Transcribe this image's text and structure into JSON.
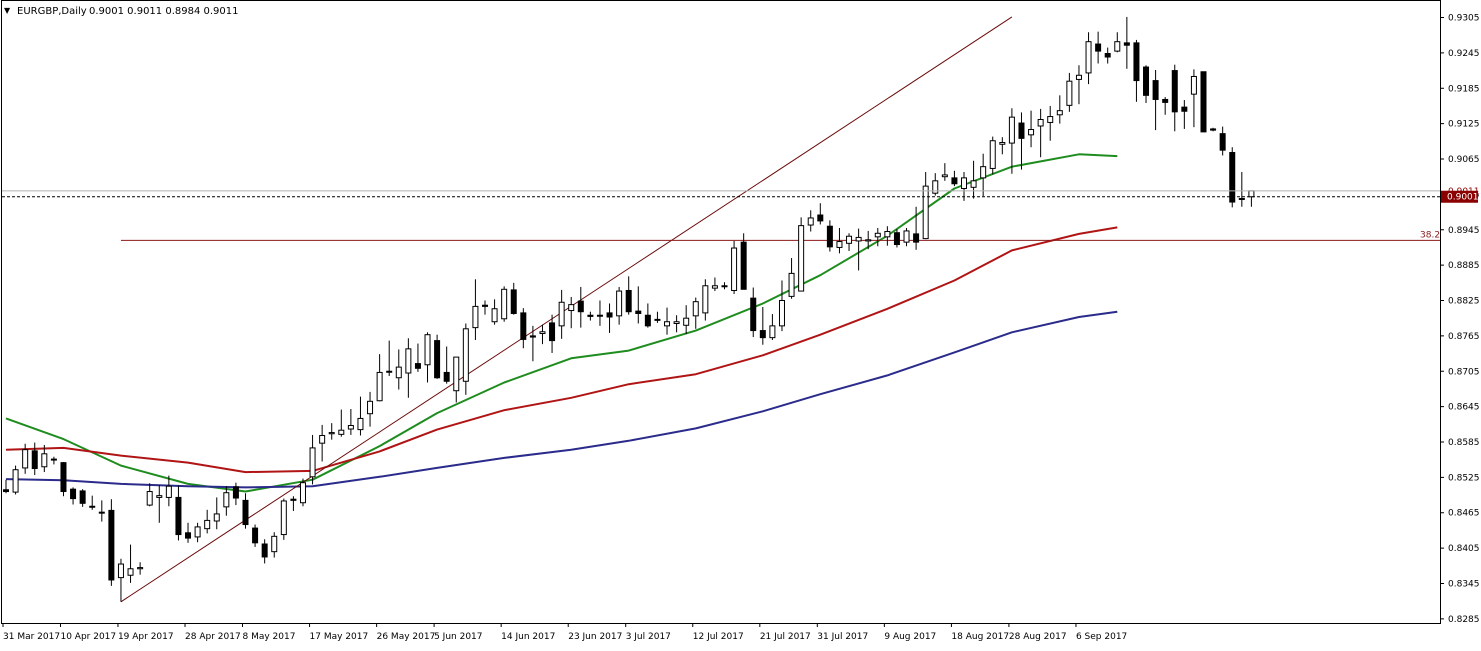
{
  "header": {
    "arrow": "▼",
    "symbol_period": "EURGBP,Daily",
    "ohlc": "0.9001 0.9011 0.8984 0.9011"
  },
  "colors": {
    "bull_body": "#ffffff",
    "bear_body": "#000000",
    "ma_fast": "#1e8c1e",
    "ma_mid": "#b01414",
    "ma_slow": "#2b2b8c",
    "trendline": "#6b0a0a",
    "fib_line": "#8b1a1a",
    "price_label_bg": "#8b0000",
    "grid_dotted": "#000000"
  },
  "price_label": "0.9001",
  "price_label_ghost": "0.9011",
  "fib_label": "38.2",
  "chart_data": {
    "type": "candlestick",
    "symbol": "EURGBP",
    "timeframe": "Daily",
    "y_axis": {
      "ticks": [
        "0.9305",
        "0.9245",
        "0.9185",
        "0.9125",
        "0.9065",
        "0.9005",
        "0.8945",
        "0.8885",
        "0.8825",
        "0.8765",
        "0.8705",
        "0.8645",
        "0.8585",
        "0.8525",
        "0.8465",
        "0.8405",
        "0.8345",
        "0.8285"
      ],
      "ylim": [
        0.8278,
        0.9333
      ]
    },
    "x_axis": {
      "ticks": [
        {
          "label": "31 Mar 2017",
          "index": 0
        },
        {
          "label": "10 Apr 2017",
          "index": 6
        },
        {
          "label": "19 Apr 2017",
          "index": 12
        },
        {
          "label": "28 Apr 2017",
          "index": 19
        },
        {
          "label": "8 May 2017",
          "index": 25
        },
        {
          "label": "17 May 2017",
          "index": 32
        },
        {
          "label": "26 May 2017",
          "index": 39
        },
        {
          "label": "5 Jun 2017",
          "index": 45
        },
        {
          "label": "14 Jun 2017",
          "index": 52
        },
        {
          "label": "23 Jun 2017",
          "index": 59
        },
        {
          "label": "3 Jul 2017",
          "index": 65
        },
        {
          "label": "12 Jul 2017",
          "index": 72
        },
        {
          "label": "21 Jul 2017",
          "index": 79
        },
        {
          "label": "31 Jul 2017",
          "index": 85
        },
        {
          "label": "9 Aug 2017",
          "index": 92
        },
        {
          "label": "18 Aug 2017",
          "index": 99
        },
        {
          "label": "28 Aug 2017",
          "index": 105
        },
        {
          "label": "6 Sep 2017",
          "index": 112
        }
      ]
    },
    "candles": [
      {
        "o": 0.8504,
        "h": 0.8521,
        "l": 0.8498,
        "c": 0.8501
      },
      {
        "o": 0.85,
        "h": 0.8545,
        "l": 0.8496,
        "c": 0.8538
      },
      {
        "o": 0.8541,
        "h": 0.8582,
        "l": 0.8531,
        "c": 0.8572
      },
      {
        "o": 0.857,
        "h": 0.8584,
        "l": 0.8529,
        "c": 0.854
      },
      {
        "o": 0.8543,
        "h": 0.858,
        "l": 0.8534,
        "c": 0.8565
      },
      {
        "o": 0.8556,
        "h": 0.856,
        "l": 0.8547,
        "c": 0.8555
      },
      {
        "o": 0.855,
        "h": 0.8551,
        "l": 0.8493,
        "c": 0.8501
      },
      {
        "o": 0.8505,
        "h": 0.8508,
        "l": 0.8479,
        "c": 0.8489
      },
      {
        "o": 0.8502,
        "h": 0.8505,
        "l": 0.8475,
        "c": 0.8481
      },
      {
        "o": 0.8476,
        "h": 0.8494,
        "l": 0.847,
        "c": 0.8476
      },
      {
        "o": 0.8465,
        "h": 0.8486,
        "l": 0.845,
        "c": 0.8466
      },
      {
        "o": 0.8469,
        "h": 0.8488,
        "l": 0.8341,
        "c": 0.8351
      },
      {
        "o": 0.8355,
        "h": 0.8387,
        "l": 0.8314,
        "c": 0.8378
      },
      {
        "o": 0.8359,
        "h": 0.8411,
        "l": 0.8346,
        "c": 0.837
      },
      {
        "o": 0.837,
        "h": 0.8381,
        "l": 0.836,
        "c": 0.8372
      },
      {
        "o": 0.8478,
        "h": 0.8515,
        "l": 0.8476,
        "c": 0.8501
      },
      {
        "o": 0.8491,
        "h": 0.8512,
        "l": 0.8448,
        "c": 0.8494
      },
      {
        "o": 0.8491,
        "h": 0.8528,
        "l": 0.8476,
        "c": 0.851
      },
      {
        "o": 0.8491,
        "h": 0.8511,
        "l": 0.8418,
        "c": 0.8428
      },
      {
        "o": 0.8431,
        "h": 0.8448,
        "l": 0.8414,
        "c": 0.8422
      },
      {
        "o": 0.8424,
        "h": 0.8448,
        "l": 0.8415,
        "c": 0.8441
      },
      {
        "o": 0.8438,
        "h": 0.847,
        "l": 0.843,
        "c": 0.8452
      },
      {
        "o": 0.8451,
        "h": 0.8491,
        "l": 0.8437,
        "c": 0.8463
      },
      {
        "o": 0.8475,
        "h": 0.851,
        "l": 0.846,
        "c": 0.8499
      },
      {
        "o": 0.8509,
        "h": 0.8516,
        "l": 0.8478,
        "c": 0.849
      },
      {
        "o": 0.8486,
        "h": 0.8498,
        "l": 0.8438,
        "c": 0.8445
      },
      {
        "o": 0.8439,
        "h": 0.8445,
        "l": 0.8407,
        "c": 0.8414
      },
      {
        "o": 0.8412,
        "h": 0.842,
        "l": 0.8379,
        "c": 0.839
      },
      {
        "o": 0.8399,
        "h": 0.8432,
        "l": 0.8389,
        "c": 0.8425
      },
      {
        "o": 0.8428,
        "h": 0.8489,
        "l": 0.8419,
        "c": 0.8485
      },
      {
        "o": 0.8488,
        "h": 0.8493,
        "l": 0.8468,
        "c": 0.8486
      },
      {
        "o": 0.8482,
        "h": 0.8523,
        "l": 0.8476,
        "c": 0.8516
      },
      {
        "o": 0.8526,
        "h": 0.8597,
        "l": 0.8513,
        "c": 0.8575
      },
      {
        "o": 0.8583,
        "h": 0.8614,
        "l": 0.8552,
        "c": 0.8596
      },
      {
        "o": 0.8599,
        "h": 0.8617,
        "l": 0.8589,
        "c": 0.8601
      },
      {
        "o": 0.8598,
        "h": 0.864,
        "l": 0.8594,
        "c": 0.8605
      },
      {
        "o": 0.8607,
        "h": 0.8641,
        "l": 0.8597,
        "c": 0.8613
      },
      {
        "o": 0.8606,
        "h": 0.8662,
        "l": 0.8596,
        "c": 0.8625
      },
      {
        "o": 0.8633,
        "h": 0.867,
        "l": 0.8611,
        "c": 0.8654
      },
      {
        "o": 0.8655,
        "h": 0.8734,
        "l": 0.8654,
        "c": 0.8703
      },
      {
        "o": 0.8704,
        "h": 0.8757,
        "l": 0.8697,
        "c": 0.8705
      },
      {
        "o": 0.8694,
        "h": 0.8742,
        "l": 0.8674,
        "c": 0.8712
      },
      {
        "o": 0.8702,
        "h": 0.8761,
        "l": 0.866,
        "c": 0.8743
      },
      {
        "o": 0.8718,
        "h": 0.8752,
        "l": 0.8704,
        "c": 0.871
      },
      {
        "o": 0.8716,
        "h": 0.8771,
        "l": 0.8686,
        "c": 0.8767
      },
      {
        "o": 0.8757,
        "h": 0.8767,
        "l": 0.8692,
        "c": 0.8694
      },
      {
        "o": 0.8703,
        "h": 0.8747,
        "l": 0.8684,
        "c": 0.8688
      },
      {
        "o": 0.8672,
        "h": 0.8729,
        "l": 0.8652,
        "c": 0.8729
      },
      {
        "o": 0.8688,
        "h": 0.8786,
        "l": 0.8665,
        "c": 0.8777
      },
      {
        "o": 0.8779,
        "h": 0.8861,
        "l": 0.8758,
        "c": 0.8815
      },
      {
        "o": 0.8817,
        "h": 0.8825,
        "l": 0.8801,
        "c": 0.8815
      },
      {
        "o": 0.8789,
        "h": 0.8827,
        "l": 0.8784,
        "c": 0.8811
      },
      {
        "o": 0.8794,
        "h": 0.8849,
        "l": 0.8789,
        "c": 0.8844
      },
      {
        "o": 0.8843,
        "h": 0.8855,
        "l": 0.8801,
        "c": 0.8803
      },
      {
        "o": 0.8804,
        "h": 0.8812,
        "l": 0.8744,
        "c": 0.8759
      },
      {
        "o": 0.8765,
        "h": 0.8782,
        "l": 0.8722,
        "c": 0.8763
      },
      {
        "o": 0.8769,
        "h": 0.8784,
        "l": 0.8751,
        "c": 0.8772
      },
      {
        "o": 0.8787,
        "h": 0.8801,
        "l": 0.8736,
        "c": 0.8757
      },
      {
        "o": 0.8782,
        "h": 0.8843,
        "l": 0.876,
        "c": 0.8822
      },
      {
        "o": 0.8808,
        "h": 0.8831,
        "l": 0.8778,
        "c": 0.8818
      },
      {
        "o": 0.8824,
        "h": 0.8848,
        "l": 0.8779,
        "c": 0.8806
      },
      {
        "o": 0.88,
        "h": 0.8806,
        "l": 0.8791,
        "c": 0.8798
      },
      {
        "o": 0.88,
        "h": 0.8825,
        "l": 0.8782,
        "c": 0.88
      },
      {
        "o": 0.8804,
        "h": 0.882,
        "l": 0.877,
        "c": 0.8797
      },
      {
        "o": 0.8799,
        "h": 0.8848,
        "l": 0.8784,
        "c": 0.8841
      },
      {
        "o": 0.8842,
        "h": 0.8866,
        "l": 0.8801,
        "c": 0.8806
      },
      {
        "o": 0.8807,
        "h": 0.8849,
        "l": 0.8786,
        "c": 0.8803
      },
      {
        "o": 0.88,
        "h": 0.882,
        "l": 0.8779,
        "c": 0.8782
      },
      {
        "o": 0.8792,
        "h": 0.8806,
        "l": 0.8787,
        "c": 0.8793
      },
      {
        "o": 0.8782,
        "h": 0.8813,
        "l": 0.8767,
        "c": 0.8789
      },
      {
        "o": 0.8786,
        "h": 0.88,
        "l": 0.8771,
        "c": 0.8789
      },
      {
        "o": 0.8783,
        "h": 0.8817,
        "l": 0.8768,
        "c": 0.8795
      },
      {
        "o": 0.8799,
        "h": 0.883,
        "l": 0.8777,
        "c": 0.8823
      },
      {
        "o": 0.8804,
        "h": 0.8861,
        "l": 0.8791,
        "c": 0.885
      },
      {
        "o": 0.8846,
        "h": 0.8864,
        "l": 0.8841,
        "c": 0.885
      },
      {
        "o": 0.8849,
        "h": 0.8856,
        "l": 0.8844,
        "c": 0.885
      },
      {
        "o": 0.8842,
        "h": 0.8926,
        "l": 0.8836,
        "c": 0.8914
      },
      {
        "o": 0.8924,
        "h": 0.8939,
        "l": 0.8854,
        "c": 0.8844
      },
      {
        "o": 0.8829,
        "h": 0.8847,
        "l": 0.8763,
        "c": 0.8774
      },
      {
        "o": 0.8774,
        "h": 0.8814,
        "l": 0.875,
        "c": 0.8762
      },
      {
        "o": 0.8762,
        "h": 0.8802,
        "l": 0.8758,
        "c": 0.8782
      },
      {
        "o": 0.8782,
        "h": 0.8859,
        "l": 0.8773,
        "c": 0.8825
      },
      {
        "o": 0.8832,
        "h": 0.8897,
        "l": 0.8828,
        "c": 0.8871
      },
      {
        "o": 0.8841,
        "h": 0.8966,
        "l": 0.8841,
        "c": 0.8952
      },
      {
        "o": 0.8953,
        "h": 0.8978,
        "l": 0.8942,
        "c": 0.8965
      },
      {
        "o": 0.897,
        "h": 0.899,
        "l": 0.8954,
        "c": 0.896
      },
      {
        "o": 0.8951,
        "h": 0.8961,
        "l": 0.8908,
        "c": 0.8916
      },
      {
        "o": 0.8915,
        "h": 0.8948,
        "l": 0.8905,
        "c": 0.8925
      },
      {
        "o": 0.8922,
        "h": 0.8939,
        "l": 0.8909,
        "c": 0.8934
      },
      {
        "o": 0.8926,
        "h": 0.8947,
        "l": 0.8876,
        "c": 0.8932
      },
      {
        "o": 0.8926,
        "h": 0.8943,
        "l": 0.8912,
        "c": 0.8928
      },
      {
        "o": 0.8933,
        "h": 0.8948,
        "l": 0.8917,
        "c": 0.8939
      },
      {
        "o": 0.8933,
        "h": 0.8951,
        "l": 0.8918,
        "c": 0.8942
      },
      {
        "o": 0.894,
        "h": 0.8946,
        "l": 0.8915,
        "c": 0.892
      },
      {
        "o": 0.8924,
        "h": 0.8948,
        "l": 0.8917,
        "c": 0.8943
      },
      {
        "o": 0.8938,
        "h": 0.8984,
        "l": 0.8911,
        "c": 0.8924
      },
      {
        "o": 0.893,
        "h": 0.9043,
        "l": 0.8929,
        "c": 0.9019
      },
      {
        "o": 0.9007,
        "h": 0.9041,
        "l": 0.9003,
        "c": 0.9028
      },
      {
        "o": 0.9035,
        "h": 0.9058,
        "l": 0.9028,
        "c": 0.9038
      },
      {
        "o": 0.9033,
        "h": 0.9045,
        "l": 0.9019,
        "c": 0.9023
      },
      {
        "o": 0.9015,
        "h": 0.9043,
        "l": 0.8994,
        "c": 0.9033
      },
      {
        "o": 0.9017,
        "h": 0.9062,
        "l": 0.8998,
        "c": 0.9028
      },
      {
        "o": 0.9033,
        "h": 0.9074,
        "l": 0.9002,
        "c": 0.9052
      },
      {
        "o": 0.9049,
        "h": 0.9103,
        "l": 0.9039,
        "c": 0.9096
      },
      {
        "o": 0.909,
        "h": 0.9102,
        "l": 0.9073,
        "c": 0.9093
      },
      {
        "o": 0.9092,
        "h": 0.9151,
        "l": 0.904,
        "c": 0.9136
      },
      {
        "o": 0.9126,
        "h": 0.9144,
        "l": 0.9047,
        "c": 0.91
      },
      {
        "o": 0.9106,
        "h": 0.9147,
        "l": 0.9085,
        "c": 0.9115
      },
      {
        "o": 0.9121,
        "h": 0.915,
        "l": 0.9068,
        "c": 0.9132
      },
      {
        "o": 0.9127,
        "h": 0.9155,
        "l": 0.9096,
        "c": 0.9137
      },
      {
        "o": 0.914,
        "h": 0.9173,
        "l": 0.9125,
        "c": 0.9147
      },
      {
        "o": 0.9156,
        "h": 0.9211,
        "l": 0.9145,
        "c": 0.9197
      },
      {
        "o": 0.92,
        "h": 0.9224,
        "l": 0.9158,
        "c": 0.9207
      },
      {
        "o": 0.9211,
        "h": 0.928,
        "l": 0.9192,
        "c": 0.9264
      },
      {
        "o": 0.926,
        "h": 0.9281,
        "l": 0.9227,
        "c": 0.9248
      },
      {
        "o": 0.9244,
        "h": 0.9254,
        "l": 0.9227,
        "c": 0.9238
      },
      {
        "o": 0.9248,
        "h": 0.928,
        "l": 0.9246,
        "c": 0.9264
      },
      {
        "o": 0.9262,
        "h": 0.9306,
        "l": 0.9218,
        "c": 0.9258
      },
      {
        "o": 0.9262,
        "h": 0.9267,
        "l": 0.9162,
        "c": 0.9198
      },
      {
        "o": 0.9221,
        "h": 0.9224,
        "l": 0.916,
        "c": 0.9173
      },
      {
        "o": 0.9198,
        "h": 0.9216,
        "l": 0.9114,
        "c": 0.9166
      },
      {
        "o": 0.9166,
        "h": 0.917,
        "l": 0.914,
        "c": 0.9161
      },
      {
        "o": 0.9215,
        "h": 0.9225,
        "l": 0.9112,
        "c": 0.9145
      },
      {
        "o": 0.9153,
        "h": 0.9165,
        "l": 0.9116,
        "c": 0.9146
      },
      {
        "o": 0.9175,
        "h": 0.9217,
        "l": 0.9119,
        "c": 0.9205
      },
      {
        "o": 0.9213,
        "h": 0.9213,
        "l": 0.9119,
        "c": 0.9111
      },
      {
        "o": 0.9116,
        "h": 0.9118,
        "l": 0.9112,
        "c": 0.9114
      },
      {
        "o": 0.9108,
        "h": 0.912,
        "l": 0.9071,
        "c": 0.908
      },
      {
        "o": 0.9076,
        "h": 0.9085,
        "l": 0.8983,
        "c": 0.8992
      },
      {
        "o": 0.8998,
        "h": 0.9043,
        "l": 0.8984,
        "c": 0.8997
      },
      {
        "o": 0.9001,
        "h": 0.9011,
        "l": 0.8984,
        "c": 0.9011
      }
    ],
    "moving_averages": [
      {
        "color": "#1e8c1e",
        "x": [
          0,
          6,
          12,
          19,
          25,
          32,
          39,
          45,
          52,
          59,
          65,
          72,
          79,
          85,
          92,
          99,
          105,
          112,
          116
        ],
        "y": [
          0.8625,
          0.859,
          0.8545,
          0.8514,
          0.8501,
          0.8521,
          0.8578,
          0.8634,
          0.8686,
          0.8727,
          0.874,
          0.8774,
          0.882,
          0.8868,
          0.8935,
          0.9015,
          0.9052,
          0.9073,
          0.907
        ]
      },
      {
        "color": "#b01414",
        "x": [
          0,
          6,
          12,
          19,
          25,
          32,
          39,
          45,
          52,
          59,
          65,
          72,
          79,
          85,
          92,
          99,
          105,
          112,
          116
        ],
        "y": [
          0.8572,
          0.8575,
          0.8562,
          0.855,
          0.8534,
          0.8536,
          0.8569,
          0.8606,
          0.8639,
          0.866,
          0.8683,
          0.87,
          0.8732,
          0.8767,
          0.8811,
          0.8859,
          0.891,
          0.8938,
          0.8949
        ]
      },
      {
        "color": "#2b2b8c",
        "x": [
          0,
          6,
          12,
          19,
          25,
          32,
          39,
          45,
          52,
          59,
          65,
          72,
          79,
          85,
          92,
          99,
          105,
          112,
          116
        ],
        "y": [
          0.8522,
          0.852,
          0.8514,
          0.851,
          0.8508,
          0.851,
          0.8526,
          0.8541,
          0.8558,
          0.8572,
          0.8587,
          0.8608,
          0.8637,
          0.8666,
          0.8698,
          0.8737,
          0.8771,
          0.8797,
          0.8806
        ]
      }
    ],
    "trendline": {
      "from": {
        "index": 12,
        "price": 0.8314
      },
      "to": {
        "index": 105,
        "price": 0.9306
      }
    },
    "fib_level": {
      "label": "38.2",
      "price": 0.8927,
      "from_index": 12
    },
    "current_price": 0.9001,
    "grid": false
  }
}
